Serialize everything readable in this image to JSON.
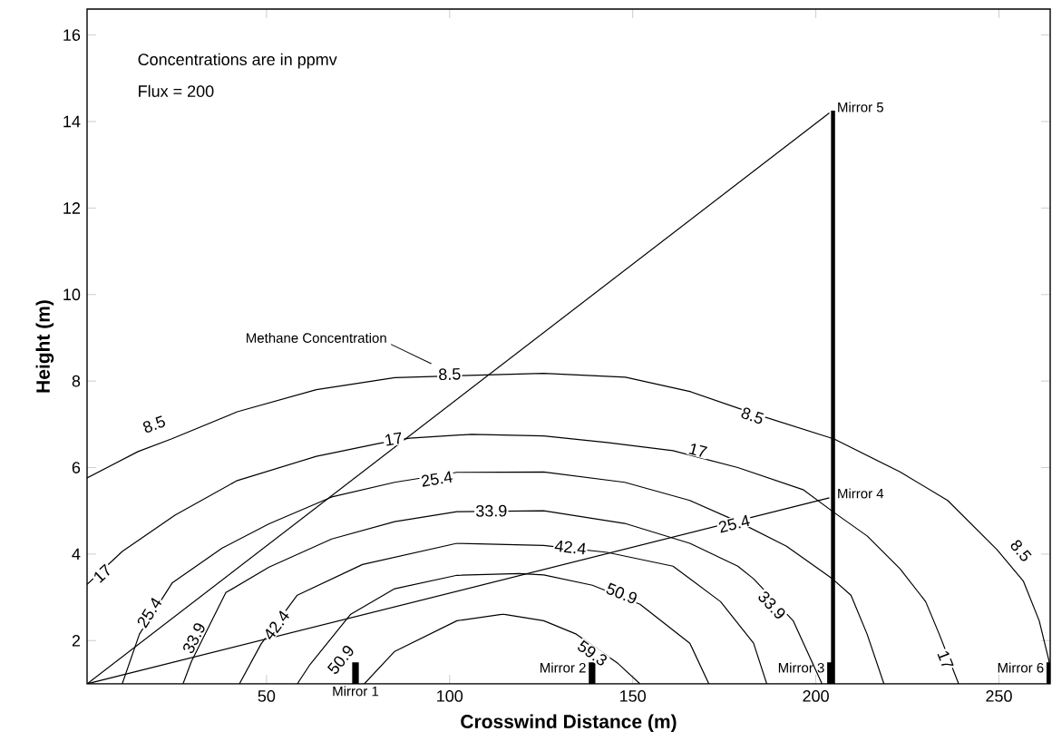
{
  "chart_data": {
    "type": "line",
    "xlabel": "Crosswind Distance (m)",
    "ylabel": "Height (m)",
    "xlim": [
      1,
      264
    ],
    "ylim": [
      1,
      16.6
    ],
    "xticks": [
      50,
      100,
      150,
      200,
      250
    ],
    "yticks": [
      2,
      4,
      6,
      8,
      10,
      12,
      14,
      16
    ],
    "series": [
      {
        "color": "#000000",
        "x": [
          1,
          14.9,
          24,
          42,
          63.6,
          85,
          125.7,
          148,
          165.6,
          183,
          205,
          223,
          236,
          249.5,
          256.7,
          261,
          263.6,
          264
        ],
        "values": [
          5.76,
          6.37,
          6.66,
          7.29,
          7.8,
          8.08,
          8.18,
          8.09,
          7.76,
          7.25,
          6.66,
          5.9,
          5.24,
          4.1,
          3.37,
          2.46,
          1.56,
          1.3
        ]
      },
      {
        "color": "#000000",
        "x": [
          1,
          10.6,
          25,
          42,
          63.6,
          80.7,
          89,
          106,
          125.7,
          143,
          161,
          178.7,
          196.5,
          205,
          214,
          223,
          230,
          233.7,
          239
        ],
        "values": [
          3.3,
          4.06,
          4.9,
          5.7,
          6.26,
          6.56,
          6.68,
          6.77,
          6.73,
          6.58,
          6.39,
          6.0,
          5.49,
          4.96,
          4.42,
          3.66,
          2.9,
          2.15,
          1.0
        ]
      },
      {
        "color": "#000000",
        "x": [
          10.6,
          15.3,
          24.3,
          37.9,
          50.7,
          67.8,
          85,
          102,
          125.7,
          147.8,
          165.6,
          178.7,
          192,
          204.5,
          209.6,
          214,
          218.6
        ],
        "values": [
          1.0,
          2.15,
          3.34,
          4.14,
          4.7,
          5.32,
          5.66,
          5.89,
          5.9,
          5.66,
          5.24,
          4.75,
          4.18,
          3.43,
          3.05,
          2.15,
          1.0
        ]
      },
      {
        "color": "#000000",
        "x": [
          27.2,
          29.5,
          38.9,
          50.7,
          67.8,
          85,
          102,
          125.7,
          147.8,
          165.6,
          178.7,
          183,
          193.8,
          201.7
        ],
        "values": [
          1.0,
          1.52,
          3.11,
          3.7,
          4.35,
          4.75,
          4.98,
          5.0,
          4.71,
          4.25,
          3.72,
          3.43,
          2.46,
          1.0
        ]
      },
      {
        "color": "#000000",
        "x": [
          42.6,
          48.5,
          58.4,
          76.2,
          102,
          125.7,
          143,
          161,
          174,
          183,
          186.6
        ],
        "values": [
          1.0,
          1.92,
          3.05,
          3.76,
          4.25,
          4.2,
          4.04,
          3.72,
          2.9,
          1.94,
          1.0
        ]
      },
      {
        "color": "#000000",
        "x": [
          58.4,
          61.9,
          73,
          85,
          102,
          119,
          125.7,
          139,
          152,
          165.6,
          170.8
        ],
        "values": [
          1.0,
          1.45,
          2.61,
          3.2,
          3.51,
          3.55,
          3.52,
          3.28,
          2.84,
          1.94,
          1.0
        ]
      },
      {
        "color": "#000000",
        "x": [
          76.7,
          85,
          102,
          114.6,
          125.7,
          134.6,
          146,
          152
        ],
        "values": [
          1.0,
          1.75,
          2.46,
          2.61,
          2.46,
          2.15,
          1.47,
          1.0
        ]
      },
      {
        "color": "#000000",
        "x": [
          1,
          203.7
        ],
        "values": [
          1,
          14.2
        ]
      },
      {
        "color": "#000000",
        "x": [
          1,
          203.7
        ],
        "values": [
          1,
          5.3
        ]
      },
      {
        "type": "bar",
        "color": "#000000",
        "x": [
          74.3,
          138.9,
          204,
          263.9
        ],
        "base": [
          1,
          1,
          1,
          1
        ],
        "values": [
          0.5,
          0.5,
          0.5,
          0.5
        ]
      },
      {
        "type": "bar",
        "color": "#000000",
        "x": [
          204.7
        ],
        "base": [
          1
        ],
        "values": [
          13.25
        ]
      }
    ],
    "annotations": [
      "Concentrations are in ppmv",
      "Flux = 200",
      "Methane Concentration",
      {
        "text": "Mirror 5",
        "x": 204.7,
        "y": 14.25
      },
      {
        "text": "Mirror 4",
        "x": 204.7,
        "y": 5.32
      },
      {
        "text": "Mirror 1",
        "x": 74.3,
        "y": 1
      },
      {
        "text": "Mirror 2",
        "x": 138.9,
        "y": 1.5
      },
      {
        "text": "Mirror 3",
        "x": 204,
        "y": 1.5
      },
      {
        "text": "Mirror 6",
        "x": 263.9,
        "y": 1.5
      },
      {
        "text": "8.5",
        "x": 100,
        "y": 8.16
      },
      {
        "text": "8.5",
        "x": 19.3,
        "y": 7.0
      },
      {
        "text": "8.5",
        "x": 182.7,
        "y": 7.2
      },
      {
        "text": "8.5",
        "x": 256,
        "y": 4.08
      },
      {
        "text": "17",
        "x": 5.2,
        "y": 3.55
      },
      {
        "text": "17",
        "x": 84.7,
        "y": 6.66
      },
      {
        "text": "17",
        "x": 167.8,
        "y": 6.4
      },
      {
        "text": "17",
        "x": 235.4,
        "y": 1.56
      },
      {
        "text": "25.4",
        "x": 18,
        "y": 2.65
      },
      {
        "text": "25.4",
        "x": 96.5,
        "y": 5.74
      },
      {
        "text": "25.4",
        "x": 177.7,
        "y": 4.7
      },
      {
        "text": "33.9",
        "x": 30.2,
        "y": 2.06
      },
      {
        "text": "33.9",
        "x": 111.4,
        "y": 5.0
      },
      {
        "text": "33.9",
        "x": 188,
        "y": 2.82
      },
      {
        "text": "42.4",
        "x": 52.7,
        "y": 2.36
      },
      {
        "text": "42.4",
        "x": 133,
        "y": 4.16
      },
      {
        "text": "50.9",
        "x": 70.3,
        "y": 1.56
      },
      {
        "text": "50.9",
        "x": 147,
        "y": 3.09
      },
      {
        "text": "59.3",
        "x": 139,
        "y": 1.71
      }
    ]
  }
}
